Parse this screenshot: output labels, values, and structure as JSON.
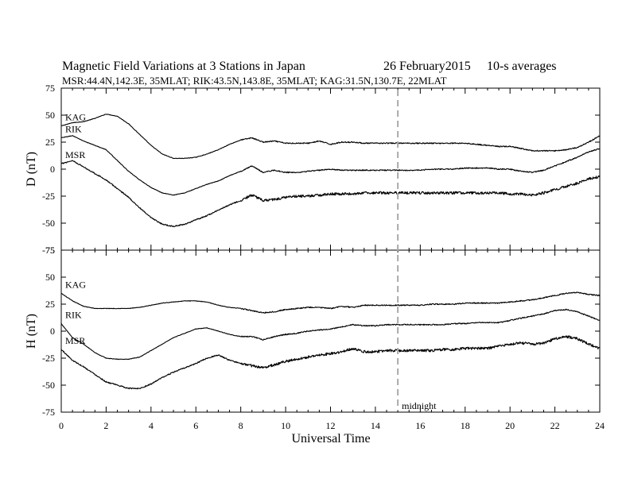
{
  "title": "Magnetic Field Variations at 3 Stations in Japan",
  "date": "26 February2015",
  "averaging": "10-s averages",
  "subtitle": "MSR:44.4N,142.3E, 35MLAT;  RIK:43.5N,143.8E, 35MLAT;  KAG:31.5N,130.7E, 22MLAT",
  "xlabel": "Universal Time",
  "midnight_label": "midnight",
  "chart_data": [
    {
      "type": "line",
      "panel": "D",
      "ylabel": "D (nT)",
      "xlim": [
        0,
        24
      ],
      "ylim": [
        -75,
        75
      ],
      "xticks": [
        0,
        2,
        4,
        6,
        8,
        10,
        12,
        14,
        16,
        18,
        20,
        22,
        24
      ],
      "yticks": [
        -75,
        -50,
        -25,
        0,
        25,
        50,
        75
      ],
      "midnight_ut": 15,
      "x": [
        0,
        0.5,
        1,
        1.5,
        2,
        2.5,
        3,
        3.5,
        4,
        4.5,
        5,
        5.5,
        6,
        6.5,
        7,
        7.5,
        8,
        8.5,
        9,
        9.5,
        10,
        10.5,
        11,
        11.5,
        12,
        12.5,
        13,
        13.5,
        14,
        14.5,
        15,
        15.5,
        16,
        16.5,
        17,
        17.5,
        18,
        18.5,
        19,
        19.5,
        20,
        20.5,
        21,
        21.5,
        22,
        22.5,
        23,
        23.5,
        24
      ],
      "series": [
        {
          "name": "KAG",
          "noise": 0.5,
          "values": [
            40,
            43,
            44,
            47,
            51,
            49,
            42,
            32,
            22,
            14,
            10,
            10,
            11,
            14,
            18,
            23,
            27,
            29,
            25,
            26,
            24,
            24,
            24,
            26,
            23,
            25,
            25,
            24,
            24,
            24,
            24,
            24,
            24,
            24,
            24,
            24,
            24,
            23,
            22,
            21,
            21,
            19,
            17,
            17,
            17,
            18,
            20,
            25,
            31
          ]
        },
        {
          "name": "RIK",
          "noise": 0.5,
          "values": [
            29,
            31,
            26,
            22,
            18,
            8,
            -2,
            -10,
            -17,
            -22,
            -24,
            -22,
            -18,
            -14,
            -11,
            -6,
            -2,
            3,
            -3,
            -1,
            -3,
            -3,
            -2,
            -1,
            0,
            -1,
            -1,
            -1,
            -1,
            -1,
            -1,
            -1,
            -1,
            0,
            0,
            0,
            1,
            1,
            1,
            0,
            0,
            -2,
            -3,
            -1,
            3,
            7,
            11,
            16,
            19
          ]
        },
        {
          "name": "MSR",
          "noise": 1.2,
          "values": [
            5,
            8,
            2,
            -4,
            -10,
            -18,
            -26,
            -36,
            -45,
            -51,
            -53,
            -51,
            -47,
            -43,
            -38,
            -33,
            -29,
            -24,
            -29,
            -28,
            -26,
            -25,
            -25,
            -24,
            -23,
            -23,
            -23,
            -22,
            -22,
            -22,
            -22,
            -22,
            -22,
            -22,
            -22,
            -22,
            -22,
            -22,
            -22,
            -22,
            -23,
            -23,
            -24,
            -22,
            -19,
            -16,
            -13,
            -9,
            -7
          ]
        }
      ]
    },
    {
      "type": "line",
      "panel": "H",
      "ylabel": "H (nT)",
      "xlim": [
        0,
        24
      ],
      "ylim": [
        -75,
        75
      ],
      "xticks": [
        0,
        2,
        4,
        6,
        8,
        10,
        12,
        14,
        16,
        18,
        20,
        22,
        24
      ],
      "yticks": [
        -75,
        -50,
        -25,
        0,
        25,
        50,
        75
      ],
      "midnight_ut": 15,
      "x": [
        0,
        0.5,
        1,
        1.5,
        2,
        2.5,
        3,
        3.5,
        4,
        4.5,
        5,
        5.5,
        6,
        6.5,
        7,
        7.5,
        8,
        8.5,
        9,
        9.5,
        10,
        10.5,
        11,
        11.5,
        12,
        12.5,
        13,
        13.5,
        14,
        14.5,
        15,
        15.5,
        16,
        16.5,
        17,
        17.5,
        18,
        18.5,
        19,
        19.5,
        20,
        20.5,
        21,
        21.5,
        22,
        22.5,
        23,
        23.5,
        24
      ],
      "series": [
        {
          "name": "KAG",
          "noise": 0.5,
          "values": [
            35,
            28,
            23,
            21,
            21,
            21,
            21,
            22,
            24,
            26,
            27,
            28,
            28,
            27,
            24,
            22,
            21,
            19,
            17,
            18,
            20,
            21,
            22,
            22,
            21,
            23,
            22,
            24,
            24,
            24,
            24,
            24,
            24,
            25,
            25,
            25,
            26,
            26,
            26,
            26,
            27,
            28,
            29,
            31,
            33,
            35,
            36,
            34,
            33
          ]
        },
        {
          "name": "RIK",
          "noise": 0.5,
          "values": [
            7,
            -6,
            -12,
            -20,
            -25,
            -26,
            -26,
            -24,
            -18,
            -12,
            -6,
            -2,
            2,
            3,
            0,
            -3,
            -5,
            -5,
            -8,
            -5,
            -3,
            -2,
            0,
            1,
            2,
            4,
            6,
            5,
            5,
            6,
            6,
            6,
            6,
            6,
            6,
            7,
            7,
            8,
            8,
            8,
            10,
            12,
            14,
            16,
            19,
            20,
            18,
            14,
            10
          ]
        },
        {
          "name": "MSR",
          "noise": 1.2,
          "values": [
            -17,
            -27,
            -33,
            -40,
            -47,
            -50,
            -53,
            -53,
            -49,
            -43,
            -38,
            -34,
            -30,
            -25,
            -22,
            -27,
            -30,
            -32,
            -34,
            -31,
            -28,
            -26,
            -24,
            -22,
            -21,
            -19,
            -16,
            -19,
            -19,
            -18,
            -18,
            -18,
            -18,
            -18,
            -17,
            -17,
            -16,
            -16,
            -16,
            -14,
            -12,
            -11,
            -12,
            -11,
            -7,
            -5,
            -7,
            -12,
            -16
          ]
        }
      ]
    }
  ]
}
